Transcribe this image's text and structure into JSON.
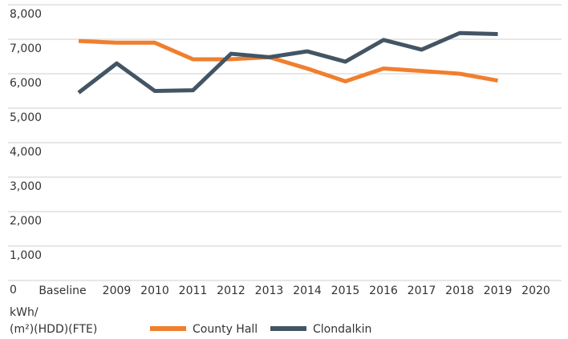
{
  "chart_data": {
    "type": "line",
    "y_label": [
      "kWh/",
      "(m²)(HDD)(FTE)"
    ],
    "categories": [
      "Baseline",
      "2009",
      "2010",
      "2011",
      "2012",
      "2013",
      "2014",
      "2015",
      "2016",
      "2017",
      "2018",
      "2019",
      "2020"
    ],
    "series": [
      {
        "name": "County Hall",
        "color": "#f07f2e",
        "values": [
          6950,
          6900,
          6900,
          6420,
          6420,
          6480,
          6150,
          5780,
          6150,
          6080,
          6000,
          5800,
          null
        ]
      },
      {
        "name": "Clondalkin",
        "color": "#435565",
        "values": [
          5450,
          6300,
          5500,
          5520,
          6580,
          6480,
          6650,
          6350,
          6980,
          6700,
          7180,
          7150,
          null
        ]
      }
    ],
    "ylim": [
      0,
      8000
    ],
    "yticks": [
      0,
      {
        "value": 1000,
        "label": "1,000"
      },
      {
        "value": 2000,
        "label": "2,000"
      },
      {
        "value": 3000,
        "label": "3,000"
      },
      {
        "value": 4000,
        "label": "4,000"
      },
      {
        "value": 5000,
        "label": "5,000"
      },
      {
        "value": 6000,
        "label": "6,000"
      },
      {
        "value": 7000,
        "label": "7,000"
      },
      {
        "value": 8000,
        "label": "8,000"
      }
    ],
    "grid": true,
    "legend": "bottom"
  }
}
